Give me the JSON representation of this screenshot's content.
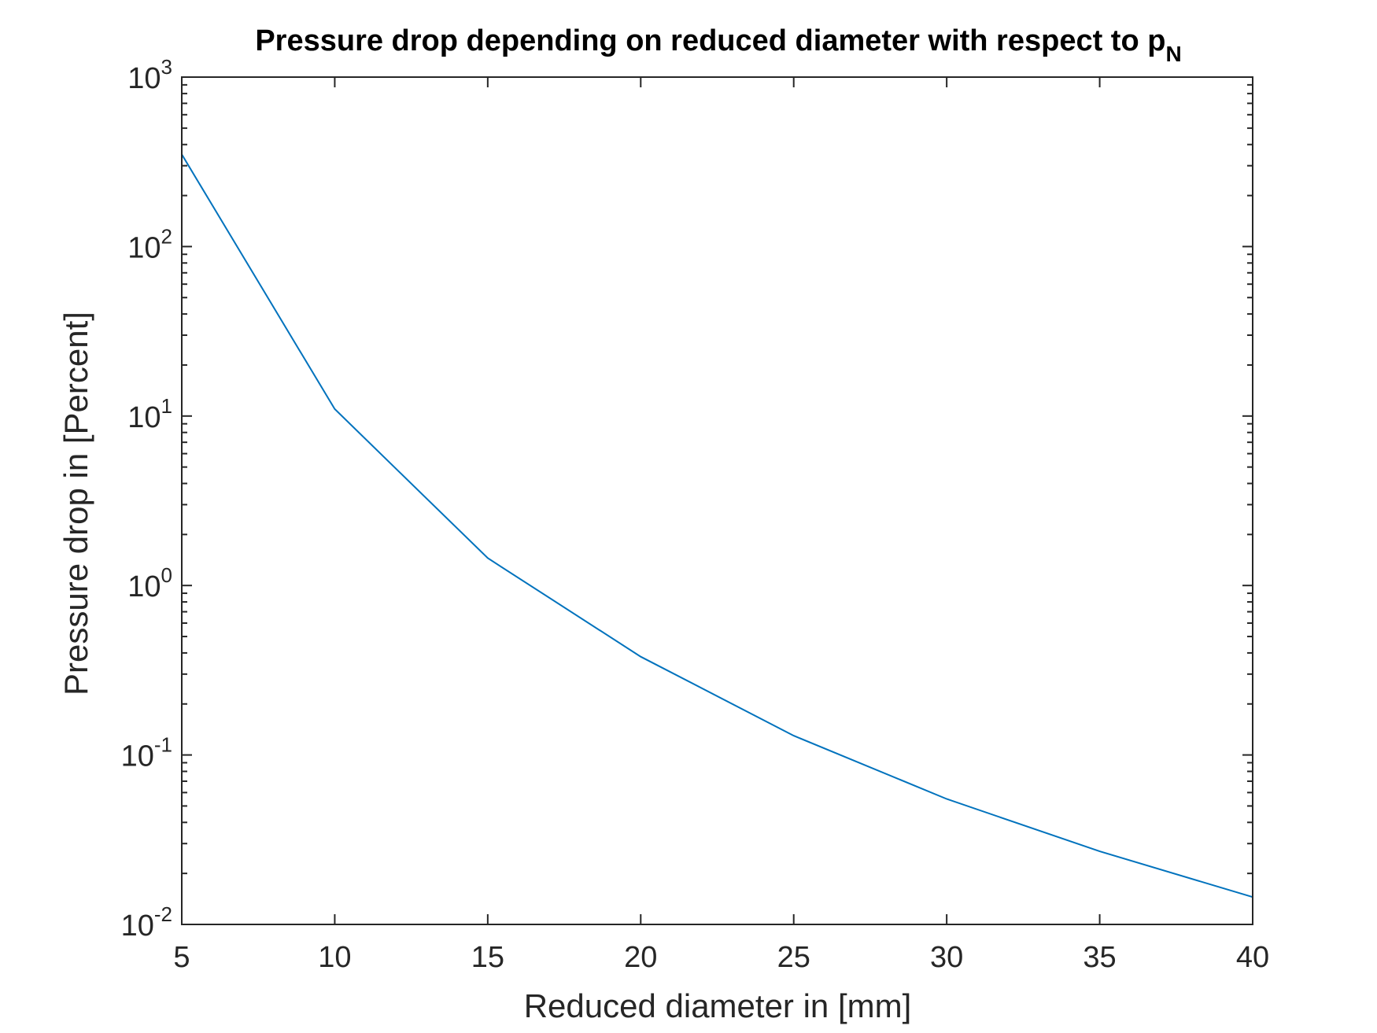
{
  "chart_data": {
    "type": "line",
    "title": "Pressure drop depending on reduced diameter with respect to p",
    "title_subscript": "N",
    "xlabel": "Reduced diameter in [mm]",
    "ylabel": "Pressure drop in [Percent]",
    "xlim": [
      5,
      40
    ],
    "ylim": [
      0.01,
      1000
    ],
    "yscale": "log",
    "xticks": [
      5,
      10,
      15,
      20,
      25,
      30,
      35,
      40
    ],
    "xtick_labels": [
      "5",
      "10",
      "15",
      "20",
      "25",
      "30",
      "35",
      "40"
    ],
    "yticks": [
      0.01,
      0.1,
      1,
      10,
      100,
      1000
    ],
    "ytick_bases": [
      "10",
      "10",
      "10",
      "10",
      "10",
      "10"
    ],
    "ytick_exponents": [
      "-2",
      "-1",
      "0",
      "1",
      "2",
      "3"
    ],
    "grid": false,
    "series": [
      {
        "color": "#0072BD",
        "x": [
          5,
          10,
          15,
          20,
          25,
          30,
          35,
          40
        ],
        "y": [
          350,
          11,
          1.45,
          0.38,
          0.13,
          0.055,
          0.027,
          0.0145
        ]
      }
    ]
  }
}
